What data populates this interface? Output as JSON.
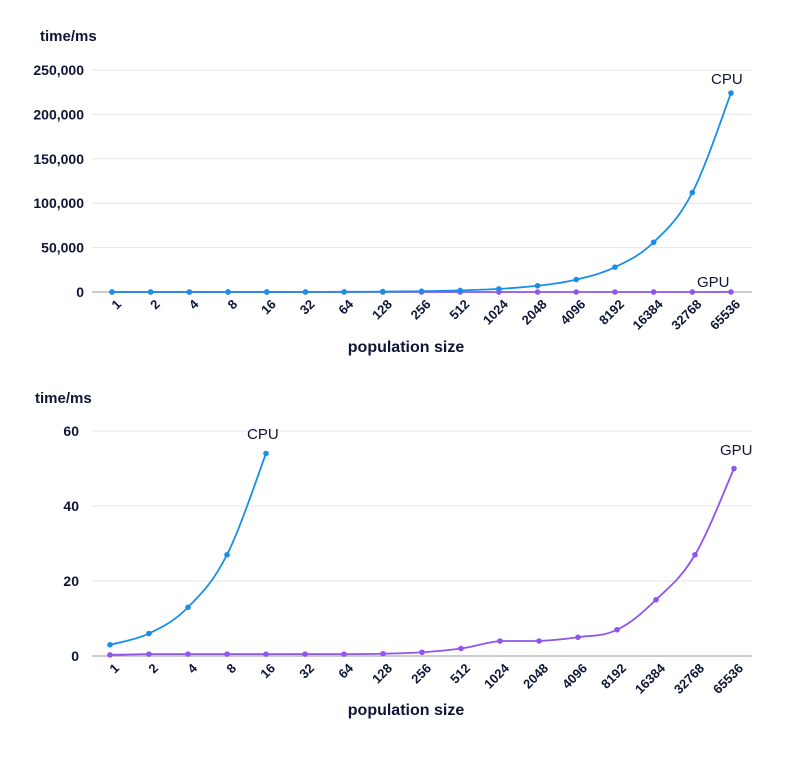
{
  "chart_data": [
    {
      "type": "line",
      "ylabel": "time/ms",
      "xlabel": "population size",
      "categories": [
        "1",
        "2",
        "4",
        "8",
        "16",
        "32",
        "64",
        "128",
        "256",
        "512",
        "1024",
        "2048",
        "4096",
        "8192",
        "16384",
        "32768",
        "65536"
      ],
      "ylim": [
        0,
        250000
      ],
      "yticks": [
        "0",
        "50,000",
        "100,000",
        "150,000",
        "200,000",
        "250,000"
      ],
      "ytick_values": [
        0,
        50000,
        100000,
        150000,
        200000,
        250000
      ],
      "grid": true,
      "series": [
        {
          "name": "CPU",
          "color": "#1a8fe8",
          "values": [
            3,
            6,
            13,
            27,
            54,
            108,
            220,
            440,
            880,
            1760,
            3500,
            7000,
            14000,
            28000,
            56000,
            112000,
            224000
          ]
        },
        {
          "name": "GPU",
          "color": "#8f55ec",
          "values": [
            0.3,
            0.5,
            0.5,
            0.5,
            0.5,
            0.5,
            0.5,
            0.6,
            1,
            2,
            4,
            4,
            5,
            7,
            15,
            27,
            50
          ]
        }
      ]
    },
    {
      "type": "line",
      "ylabel": "time/ms",
      "xlabel": "population size",
      "categories": [
        "1",
        "2",
        "4",
        "8",
        "16",
        "32",
        "64",
        "128",
        "256",
        "512",
        "1024",
        "2048",
        "4096",
        "8192",
        "16384",
        "32768",
        "65536"
      ],
      "ylim": [
        0,
        60
      ],
      "yticks": [
        "0",
        "20",
        "40",
        "60"
      ],
      "ytick_values": [
        0,
        20,
        40,
        60
      ],
      "grid": true,
      "series": [
        {
          "name": "CPU",
          "color": "#1a8fe8",
          "values": [
            3,
            6,
            13,
            27,
            54,
            null,
            null,
            null,
            null,
            null,
            null,
            null,
            null,
            null,
            null,
            null,
            null
          ]
        },
        {
          "name": "GPU",
          "color": "#8f55ec",
          "values": [
            0.3,
            0.5,
            0.5,
            0.5,
            0.5,
            0.5,
            0.5,
            0.6,
            1,
            2,
            4,
            4,
            5,
            7,
            15,
            27,
            50
          ]
        }
      ]
    }
  ]
}
